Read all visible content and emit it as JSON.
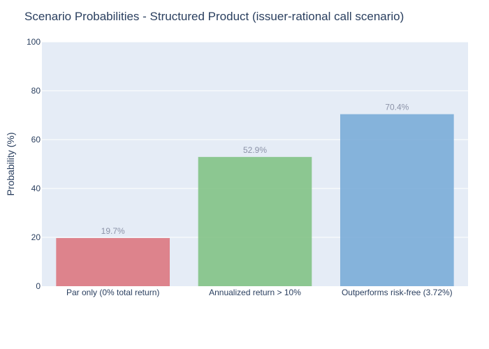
{
  "chart_data": {
    "type": "bar",
    "title": "Scenario Probabilities - Structured Product (issuer-rational call scenario)",
    "xlabel": "",
    "ylabel": "Probability (%)",
    "categories": [
      "Par only (0% total return)",
      "Annualized return > 10%",
      "Outperforms risk-free (3.72%)"
    ],
    "values": [
      19.7,
      52.9,
      70.4
    ],
    "data_labels": [
      "19.7%",
      "52.9%",
      "70.4%"
    ],
    "colors": [
      "#dc7179",
      "#7cc17f",
      "#74a9d6"
    ],
    "ylim": [
      0,
      100
    ],
    "yticks": [
      0,
      20,
      40,
      60,
      80,
      100
    ],
    "ytick_labels": [
      "0",
      "20",
      "40",
      "60",
      "80",
      "100"
    ],
    "grid": true,
    "legend": "none",
    "plot_background": "#e5ecf6"
  }
}
